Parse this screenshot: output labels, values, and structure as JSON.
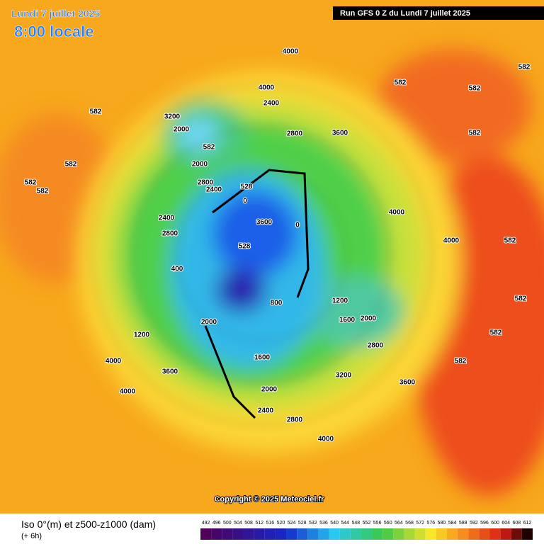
{
  "header": {
    "date": "Lundi 7 juillet 2025",
    "time": "8:00 locale",
    "run": "Run GFS 0 Z du Lundi 7 juillet 2025"
  },
  "map": {
    "labels": [
      "4000",
      "4000",
      "2400",
      "3200",
      "2000",
      "2800",
      "3600",
      "582",
      "582",
      "582",
      "582",
      "582",
      "582",
      "582",
      "582",
      "582",
      "2000",
      "2800",
      "2400",
      "3600",
      "528",
      "0",
      "0",
      "400",
      "800",
      "1200",
      "1600",
      "2000",
      "2400",
      "2800",
      "1200",
      "1600",
      "2000",
      "2800",
      "4000",
      "3600",
      "4000",
      "3200",
      "3600",
      "4000",
      "2400",
      "2800",
      "2000",
      "4000",
      "4000",
      "582",
      "582",
      "582",
      "582",
      "528"
    ]
  },
  "footer": {
    "copyright": "Copyright © 2025 Meteociel.fr",
    "caption": "Iso 0°(m) et z500-z1000 (dam)",
    "step": "(+ 6h)"
  },
  "legend": {
    "labels": [
      492,
      496,
      500,
      504,
      508,
      512,
      516,
      520,
      524,
      528,
      532,
      536,
      540,
      544,
      548,
      552,
      556,
      560,
      564,
      568,
      572,
      576,
      580,
      584,
      588,
      592,
      596,
      600,
      604,
      608,
      612
    ]
  }
}
